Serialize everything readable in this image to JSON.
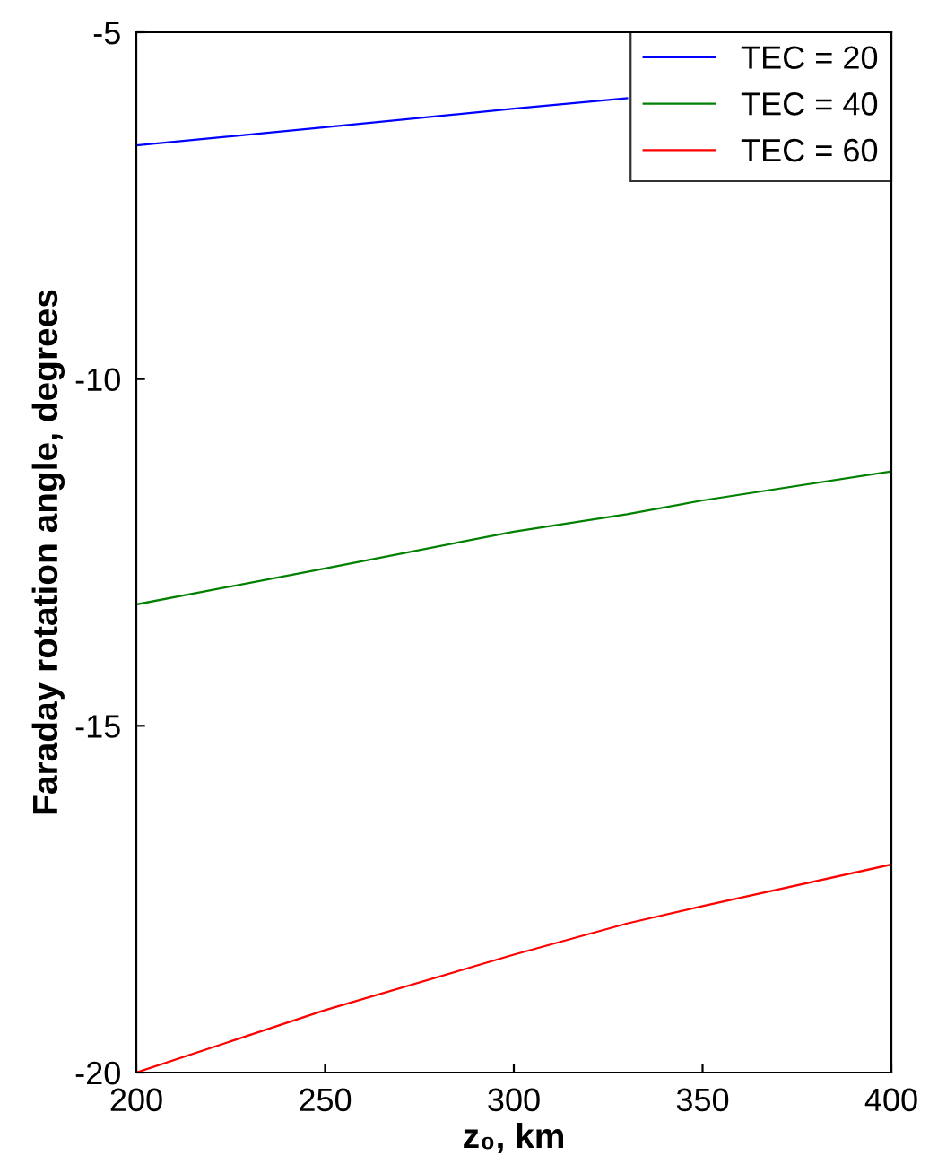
{
  "chart_data": {
    "type": "line",
    "xlabel": "z₀, km",
    "ylabel": "Faraday rotation angle, degrees",
    "x": [
      200,
      250,
      300,
      330,
      350,
      400
    ],
    "series": [
      {
        "name": "TEC = 20",
        "color": "#0000ff",
        "values": [
          -6.63,
          -6.37,
          -6.1,
          -5.95,
          null,
          null
        ]
      },
      {
        "name": "TEC = 40",
        "color": "#008000",
        "values": [
          -13.25,
          -12.73,
          -12.2,
          -11.95,
          -11.75,
          -11.33
        ]
      },
      {
        "name": "TEC = 60",
        "color": "#ff0000",
        "values": [
          -20,
          -19.1,
          -18.3,
          -17.85,
          -17.6,
          -17.0
        ]
      }
    ],
    "xlim": [
      200,
      400
    ],
    "xticks": [
      200,
      250,
      300,
      350,
      400
    ],
    "ylim": [
      -20,
      -5
    ],
    "yticks": [
      -20,
      -15,
      -10,
      -5
    ],
    "grid": false,
    "legend": "top right",
    "marker": "none",
    "line_style": "solid"
  }
}
